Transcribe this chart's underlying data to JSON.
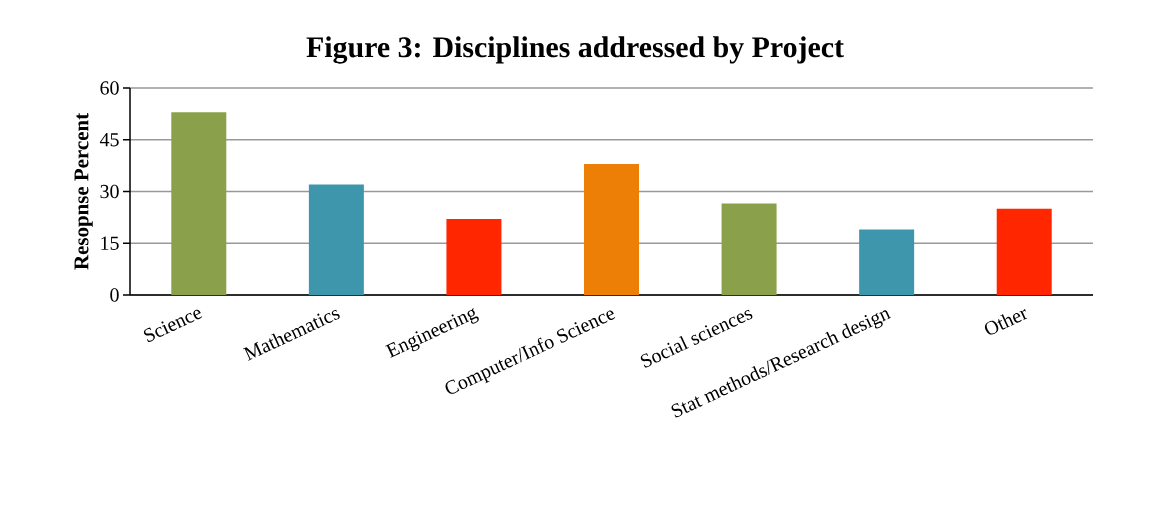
{
  "chart_data": {
    "type": "bar",
    "title": "Figure 3: Disciplines addressed by Project",
    "ylabel": "Resopnse Percent",
    "categories": [
      "Science",
      "Mathematics",
      "Engineering",
      "Computer/Info Science",
      "Social sciences",
      "Stat methods/Research design",
      "Other"
    ],
    "values": [
      53,
      32,
      22,
      38,
      26.5,
      19,
      25
    ],
    "colors": [
      "#8aa04a",
      "#3d96ab",
      "#ff2600",
      "#ed7f06",
      "#8aa04a",
      "#3d96ab",
      "#ff2600"
    ],
    "ylim": [
      0,
      60
    ],
    "yticks": [
      0,
      15,
      30,
      45,
      60
    ],
    "grid": "y"
  }
}
